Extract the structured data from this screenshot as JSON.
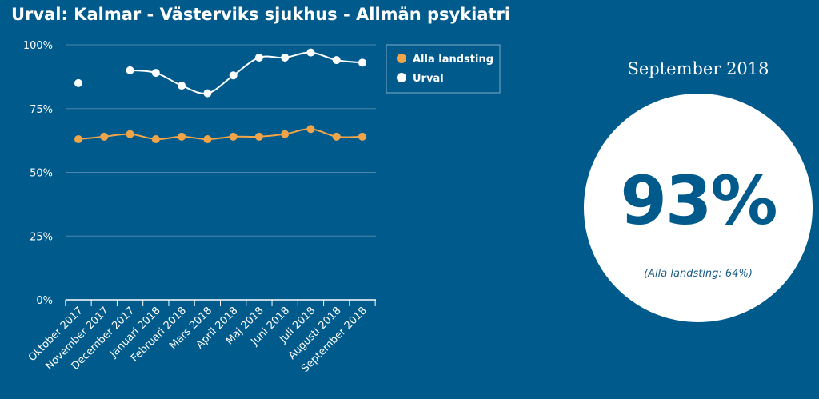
{
  "title": "Urval: Kalmar - Västerviks sjukhus - Allmän psykiatri",
  "kpi": {
    "period": "September 2018",
    "value": "93%",
    "comparison": "(Alla landsting: 64%)"
  },
  "colors": {
    "background": "#015a8c",
    "alla_landsting": "#f0a54a",
    "urval": "#ffffff",
    "grid": "#4a86ad"
  },
  "chart_data": {
    "type": "line",
    "title": "",
    "xlabel": "",
    "ylabel": "",
    "ylim": [
      0,
      100
    ],
    "yticks": [
      "0%",
      "25%",
      "50%",
      "75%",
      "100%"
    ],
    "ytick_values": [
      0,
      25,
      50,
      75,
      100
    ],
    "grid": true,
    "legend_position": "top-right",
    "categories": [
      "Oktober 2017",
      "November 2017",
      "December 2017",
      "Januari 2018",
      "Februari 2018",
      "Mars 2018",
      "April 2018",
      "Maj 2018",
      "Juni 2018",
      "Juli 2018",
      "Augusti 2018",
      "September 2018"
    ],
    "series": [
      {
        "name": "Alla landsting",
        "values": [
          63,
          64,
          65,
          63,
          64,
          63,
          64,
          64,
          65,
          67,
          64,
          64
        ]
      },
      {
        "name": "Urval",
        "values": [
          85,
          null,
          90,
          89,
          84,
          81,
          88,
          95,
          95,
          97,
          94,
          93
        ]
      }
    ]
  }
}
